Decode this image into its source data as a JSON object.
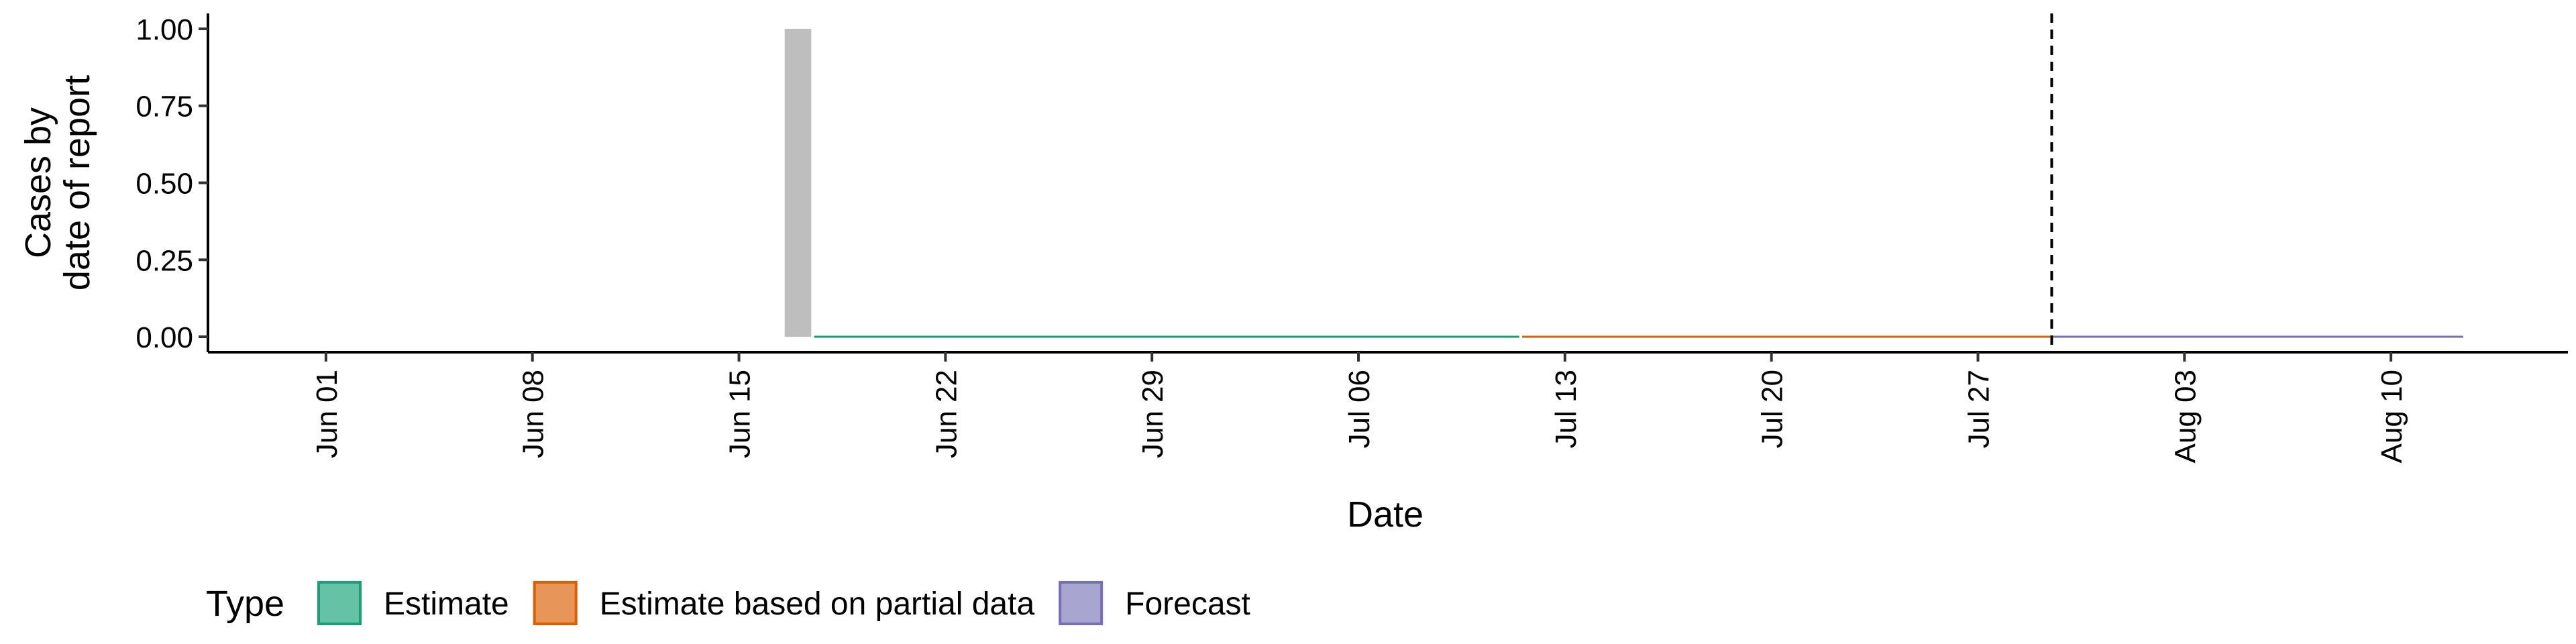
{
  "chart_data": {
    "type": "bar",
    "title": "",
    "xlabel": "Date",
    "ylabel": [
      "Cases by",
      "date of report"
    ],
    "x_ticks": [
      "2020-06-01",
      "2020-06-08",
      "2020-06-15",
      "2020-06-22",
      "2020-06-29",
      "2020-07-06",
      "2020-07-13",
      "2020-07-20",
      "2020-07-27",
      "2020-08-03",
      "2020-08-10"
    ],
    "x_tick_labels": [
      "Jun 01",
      "Jun 08",
      "Jun 15",
      "Jun 22",
      "Jun 29",
      "Jul 06",
      "Jul 13",
      "Jul 20",
      "Jul 27",
      "Aug 03",
      "Aug 10"
    ],
    "xlim": [
      "2020-05-28",
      "2020-08-16"
    ],
    "y_ticks": [
      0,
      0.25,
      0.5,
      0.75,
      1
    ],
    "y_tick_labels": [
      "0.00",
      "0.25",
      "0.50",
      "0.75",
      "1.00"
    ],
    "ylim": [
      -0.05,
      1.05
    ],
    "bars": [
      {
        "x": "2020-06-17",
        "value": 1,
        "color": "#bebebe"
      }
    ],
    "series": [
      {
        "name": "Estimate",
        "color": "#1b9e77",
        "fill": "#66c2a5",
        "x_start": "2020-06-18",
        "x_end": "2020-07-11",
        "value": 0
      },
      {
        "name": "Estimate based on partial data",
        "color": "#d95f02",
        "fill": "#e8955a",
        "x_start": "2020-07-12",
        "x_end": "2020-07-29",
        "value": 0
      },
      {
        "name": "Forecast",
        "color": "#7570b3",
        "fill": "#a8a5d1",
        "x_start": "2020-07-30",
        "x_end": "2020-08-12",
        "value": 0
      }
    ],
    "vline": {
      "x": "2020-07-29",
      "style": "dashed"
    },
    "legend": {
      "title": "Type",
      "position": "bottom-left"
    },
    "grid": false
  }
}
